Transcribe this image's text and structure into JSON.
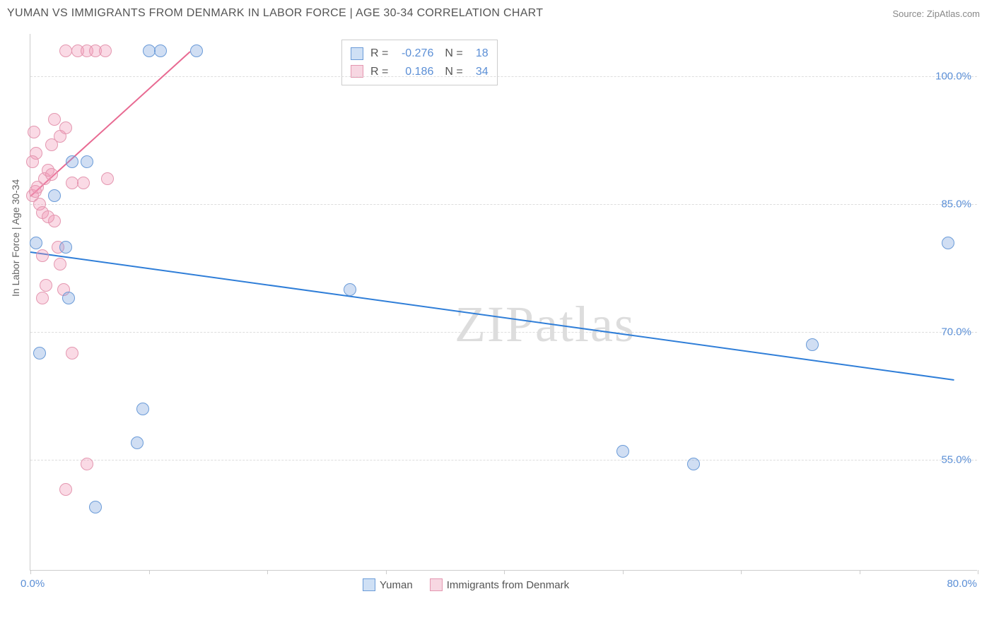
{
  "header": {
    "title": "YUMAN VS IMMIGRANTS FROM DENMARK IN LABOR FORCE | AGE 30-34 CORRELATION CHART",
    "source": "Source: ZipAtlas.com"
  },
  "chart": {
    "type": "scatter",
    "y_axis_label": "In Labor Force | Age 30-34",
    "background_color": "#ffffff",
    "grid_color": "#dddddd",
    "axis_color": "#cccccc",
    "xlim": [
      0,
      80
    ],
    "ylim": [
      42,
      105
    ],
    "x_ticks": [
      0,
      10,
      20,
      30,
      40,
      50,
      60,
      70,
      80
    ],
    "x_start_label": "0.0%",
    "x_end_label": "80.0%",
    "y_ticks": [
      {
        "v": 55,
        "label": "55.0%"
      },
      {
        "v": 70,
        "label": "70.0%"
      },
      {
        "v": 85,
        "label": "85.0%"
      },
      {
        "v": 100,
        "label": "100.0%"
      }
    ],
    "marker_radius": 9,
    "marker_stroke_width": 1.5,
    "series": [
      {
        "name": "Yuman",
        "fill": "rgba(120,160,220,0.35)",
        "stroke": "#6a9bd8",
        "swatch_fill": "#cfe0f5",
        "swatch_stroke": "#6a9bd8",
        "R": "-0.276",
        "N": "18",
        "trend": {
          "x1": 0,
          "y1": 79.5,
          "x2": 78,
          "y2": 64.5,
          "color": "#2f7ed8",
          "width": 2
        },
        "points": [
          {
            "x": 0.5,
            "y": 80.5
          },
          {
            "x": 3.0,
            "y": 80.0
          },
          {
            "x": 0.8,
            "y": 67.5
          },
          {
            "x": 3.2,
            "y": 74.0
          },
          {
            "x": 27.0,
            "y": 75.0
          },
          {
            "x": 66.0,
            "y": 68.5
          },
          {
            "x": 77.5,
            "y": 80.5
          },
          {
            "x": 50.0,
            "y": 56.0
          },
          {
            "x": 56.0,
            "y": 54.5
          },
          {
            "x": 9.0,
            "y": 57.0
          },
          {
            "x": 9.5,
            "y": 61.0
          },
          {
            "x": 5.5,
            "y": 49.5
          },
          {
            "x": 3.5,
            "y": 90.0
          },
          {
            "x": 4.8,
            "y": 90.0
          },
          {
            "x": 10.0,
            "y": 103.0
          },
          {
            "x": 11.0,
            "y": 103.0
          },
          {
            "x": 14.0,
            "y": 103.0
          },
          {
            "x": 2.0,
            "y": 86.0
          }
        ]
      },
      {
        "name": "Immigrants from Denmark",
        "fill": "rgba(240,150,180,0.35)",
        "stroke": "#e497b0",
        "swatch_fill": "#f7d7e2",
        "swatch_stroke": "#e497b0",
        "R": "0.186",
        "N": "34",
        "trend": {
          "x1": 0,
          "y1": 86.0,
          "x2": 13.5,
          "y2": 103.0,
          "color": "#e86a92",
          "width": 2
        },
        "points": [
          {
            "x": 0.2,
            "y": 86.0
          },
          {
            "x": 0.4,
            "y": 86.5
          },
          {
            "x": 0.6,
            "y": 87.0
          },
          {
            "x": 0.8,
            "y": 85.0
          },
          {
            "x": 1.0,
            "y": 84.0
          },
          {
            "x": 1.2,
            "y": 88.0
          },
          {
            "x": 1.5,
            "y": 89.0
          },
          {
            "x": 1.8,
            "y": 88.5
          },
          {
            "x": 2.0,
            "y": 83.0
          },
          {
            "x": 2.3,
            "y": 80.0
          },
          {
            "x": 2.5,
            "y": 78.0
          },
          {
            "x": 2.8,
            "y": 75.0
          },
          {
            "x": 1.0,
            "y": 74.0
          },
          {
            "x": 1.3,
            "y": 75.5
          },
          {
            "x": 0.5,
            "y": 91.0
          },
          {
            "x": 0.2,
            "y": 90.0
          },
          {
            "x": 1.8,
            "y": 92.0
          },
          {
            "x": 2.5,
            "y": 93.0
          },
          {
            "x": 3.0,
            "y": 94.0
          },
          {
            "x": 2.0,
            "y": 95.0
          },
          {
            "x": 3.5,
            "y": 87.5
          },
          {
            "x": 4.5,
            "y": 87.5
          },
          {
            "x": 6.5,
            "y": 88.0
          },
          {
            "x": 3.0,
            "y": 103.0
          },
          {
            "x": 4.0,
            "y": 103.0
          },
          {
            "x": 4.8,
            "y": 103.0
          },
          {
            "x": 5.5,
            "y": 103.0
          },
          {
            "x": 6.3,
            "y": 103.0
          },
          {
            "x": 3.5,
            "y": 67.5
          },
          {
            "x": 3.0,
            "y": 51.5
          },
          {
            "x": 4.8,
            "y": 54.5
          },
          {
            "x": 1.0,
            "y": 79.0
          },
          {
            "x": 1.5,
            "y": 83.5
          },
          {
            "x": 0.3,
            "y": 93.5
          }
        ]
      }
    ],
    "watermark": {
      "text1": "ZIP",
      "text2": "atlas"
    }
  },
  "legend": {
    "series1_label": "Yuman",
    "series2_label": "Immigrants from Denmark",
    "r_label": "R =",
    "n_label": "N ="
  }
}
